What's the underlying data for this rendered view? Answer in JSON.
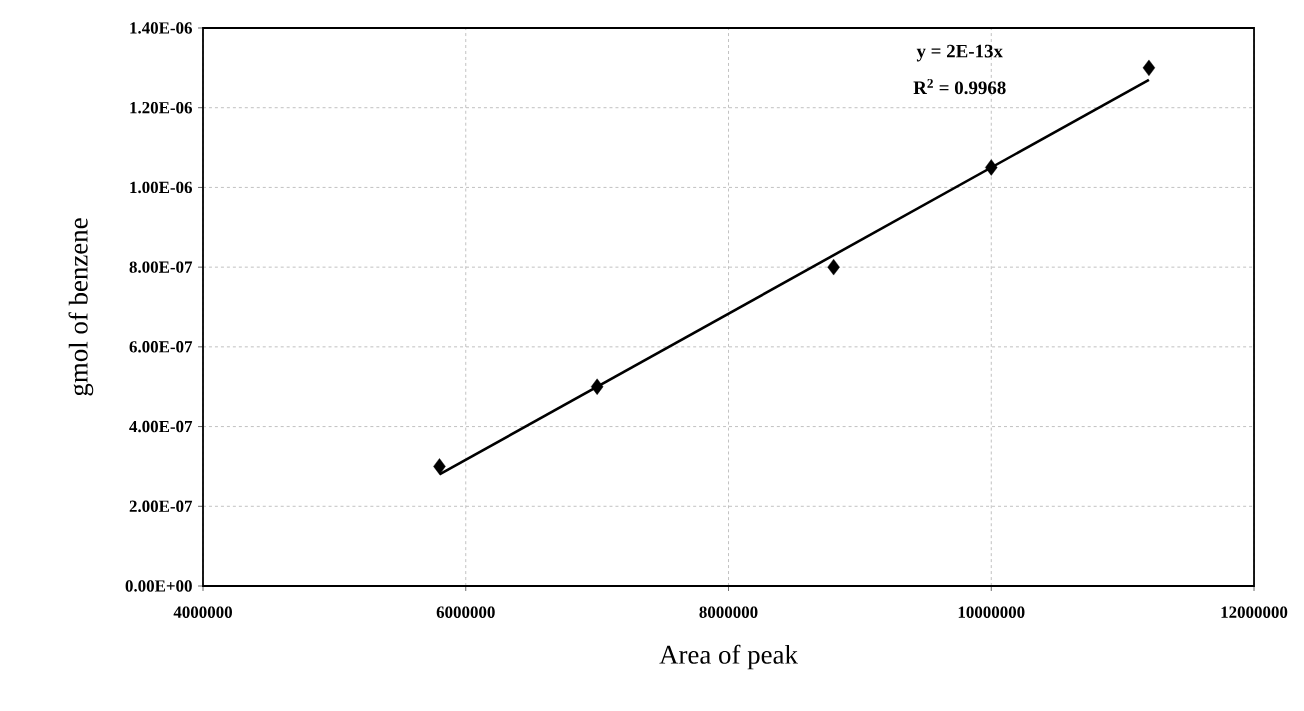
{
  "chart_data": {
    "type": "scatter",
    "xlabel": "Area of peak",
    "ylabel": "gmol of benzene",
    "xlim": [
      4000000,
      12000000
    ],
    "xticks": [
      4000000,
      6000000,
      8000000,
      10000000,
      12000000
    ],
    "ylim": [
      0,
      1.4e-06
    ],
    "yticks": [
      {
        "value": 0,
        "label": "0.00E+00"
      },
      {
        "value": 2e-07,
        "label": "2.00E-07"
      },
      {
        "value": 4e-07,
        "label": "4.00E-07"
      },
      {
        "value": 6e-07,
        "label": "6.00E-07"
      },
      {
        "value": 8e-07,
        "label": "8.00E-07"
      },
      {
        "value": 1e-06,
        "label": "1.00E-06"
      },
      {
        "value": 1.2e-06,
        "label": "1.20E-06"
      },
      {
        "value": 1.4e-06,
        "label": "1.40E-06"
      }
    ],
    "grid": true,
    "series": [
      {
        "marker": "diamond",
        "color": "#000000",
        "x": [
          5800000,
          7000000,
          8800000,
          10000000,
          11200000
        ],
        "values": [
          3e-07,
          5e-07,
          8e-07,
          1.05e-06,
          1.3e-06
        ]
      },
      {
        "type": "line",
        "marker": "none",
        "line_style": "solid",
        "color": "#000000",
        "x": [
          5800000,
          11200000
        ],
        "values": [
          2.8e-07,
          1.27e-06
        ]
      }
    ],
    "annotations": [
      "y = 2E-13x",
      "R$^{2}$ = 0.9968"
    ]
  }
}
